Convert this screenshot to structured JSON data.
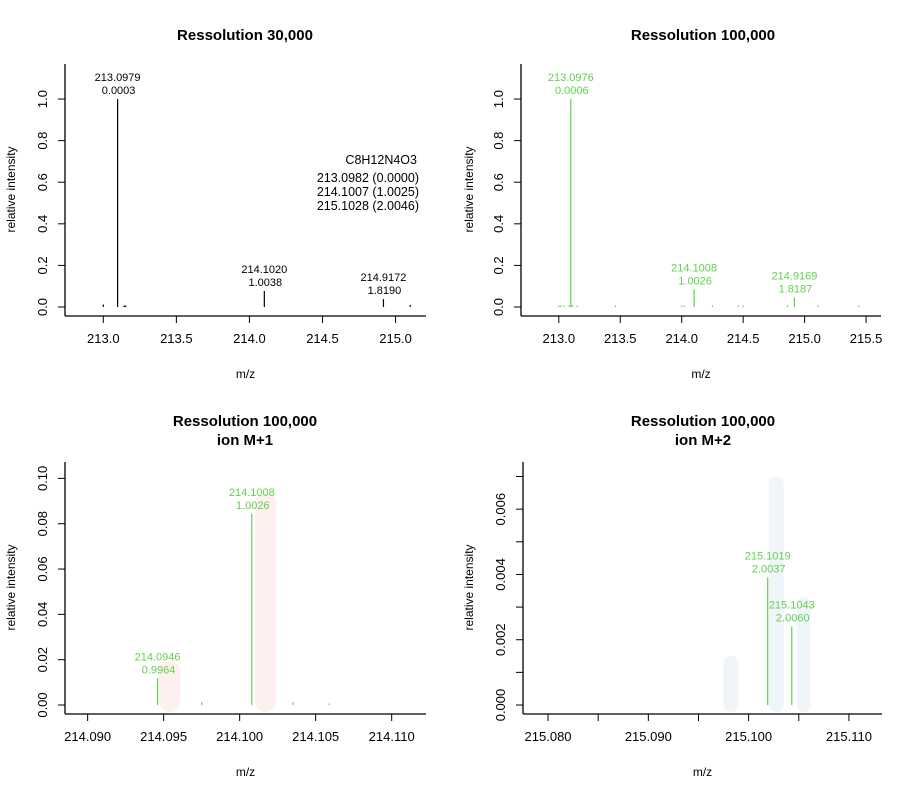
{
  "colors": {
    "black": "#000000",
    "green": "#61D04F",
    "pink_band": "#FFF0F0",
    "blue_band": "#F0F5FA"
  },
  "chart_data": [
    {
      "type": "bar",
      "id": "res30k",
      "title": [
        "Ressolution 30,000"
      ],
      "xlabel": "m/z",
      "ylabel": "relative intensity",
      "xlim": [
        212.82,
        215.14
      ],
      "ylim": [
        0,
        1.13
      ],
      "xticks": [
        213.0,
        213.5,
        214.0,
        214.5,
        215.0
      ],
      "xtick_labels": [
        "213.0",
        "213.5",
        "214.0",
        "214.5",
        "215.0"
      ],
      "yticks": [
        0.0,
        0.2,
        0.4,
        0.6,
        0.8,
        1.0
      ],
      "ytick_labels": [
        "0.0",
        "0.2",
        "0.4",
        "0.6",
        "0.8",
        "1.0"
      ],
      "peak_color": "black",
      "peaks": [
        {
          "mz": 213.0,
          "intensity": 0.012
        },
        {
          "mz": 213.0979,
          "intensity": 1.0,
          "label": [
            "213.0979",
            "0.0003"
          ]
        },
        {
          "mz": 213.143,
          "intensity": 0.004
        },
        {
          "mz": 213.152,
          "intensity": 0.004
        },
        {
          "mz": 214.102,
          "intensity": 0.077,
          "label": [
            "214.1020",
            "1.0038"
          ]
        },
        {
          "mz": 214.9172,
          "intensity": 0.038,
          "label": [
            "214.9172",
            "1.8190"
          ]
        },
        {
          "mz": 215.1,
          "intensity": 0.01
        }
      ],
      "annotation": {
        "lines": [
          "C8H12N4O3",
          "213.0982 (0.0000)",
          "214.1007 (1.0025)",
          "215.1028 (2.0046)"
        ]
      },
      "bands": []
    },
    {
      "type": "bar",
      "id": "res100k",
      "title": [
        "Ressolution 100,000"
      ],
      "xlabel": "m/z",
      "ylabel": "relative intensity",
      "xlim": [
        212.79,
        215.54
      ],
      "ylim": [
        0,
        1.13
      ],
      "xticks": [
        213.0,
        213.5,
        214.0,
        214.5,
        215.0,
        215.5
      ],
      "xtick_labels": [
        "213.0",
        "213.5",
        "214.0",
        "214.5",
        "215.0",
        "215.5"
      ],
      "yticks": [
        0.0,
        0.2,
        0.4,
        0.6,
        0.8,
        1.0
      ],
      "ytick_labels": [
        "0.0",
        "0.2",
        "0.4",
        "0.6",
        "0.8",
        "1.0"
      ],
      "peak_color": "green",
      "peaks": [
        {
          "mz": 213.0,
          "intensity": 0.008
        },
        {
          "mz": 213.015,
          "intensity": 0.004
        },
        {
          "mz": 213.04,
          "intensity": 0.004
        },
        {
          "mz": 213.085,
          "intensity": 0.008
        },
        {
          "mz": 213.0976,
          "intensity": 1.0,
          "label": [
            "213.0976",
            "0.0006"
          ]
        },
        {
          "mz": 213.11,
          "intensity": 0.008
        },
        {
          "mz": 213.15,
          "intensity": 0.004
        },
        {
          "mz": 213.46,
          "intensity": 0.004
        },
        {
          "mz": 214.0,
          "intensity": 0.004
        },
        {
          "mz": 214.02,
          "intensity": 0.004
        },
        {
          "mz": 214.1008,
          "intensity": 0.085,
          "label": [
            "214.1008",
            "1.0026"
          ]
        },
        {
          "mz": 214.25,
          "intensity": 0.004
        },
        {
          "mz": 214.46,
          "intensity": 0.004
        },
        {
          "mz": 214.5,
          "intensity": 0.006
        },
        {
          "mz": 214.86,
          "intensity": 0.004
        },
        {
          "mz": 214.9169,
          "intensity": 0.045,
          "label": [
            "214.9169",
            "1.8187"
          ]
        },
        {
          "mz": 215.11,
          "intensity": 0.006
        },
        {
          "mz": 215.44,
          "intensity": 0.004
        }
      ],
      "annotation": null,
      "bands": []
    },
    {
      "type": "bar",
      "id": "res100k-m1",
      "title": [
        "Ressolution 100,000",
        "ion M+1"
      ],
      "xlabel": "m/z",
      "ylabel": "relative intensity",
      "xlim": [
        214.0893,
        214.1116
      ],
      "ylim": [
        0,
        0.1037
      ],
      "xticks": [
        214.09,
        214.095,
        214.1,
        214.105,
        214.11
      ],
      "xtick_labels": [
        "214.090",
        "214.095",
        "214.100",
        "214.105",
        "214.110"
      ],
      "yticks": [
        0.0,
        0.02,
        0.04,
        0.06,
        0.08,
        0.1
      ],
      "ytick_labels": [
        "0.00",
        "0.02",
        "0.04",
        "0.06",
        "0.08",
        "0.10"
      ],
      "peak_color": "green",
      "peaks": [
        {
          "mz": 214.0946,
          "intensity": 0.0118,
          "label": [
            "214.0946",
            "0.9964"
          ]
        },
        {
          "mz": 214.0975,
          "intensity": 0.0012
        },
        {
          "mz": 214.1008,
          "intensity": 0.0843,
          "label": [
            "214.1008",
            "1.0026"
          ]
        },
        {
          "mz": 214.1035,
          "intensity": 0.0012
        },
        {
          "mz": 214.1059,
          "intensity": 0.0005
        }
      ],
      "annotation": null,
      "bands": [
        {
          "mz_from": 214.0947,
          "mz_to": 214.0961,
          "intensity": 0.0195,
          "color": "pink_band"
        },
        {
          "mz_from": 214.101,
          "intensity": 0.0935,
          "mz_to": 214.1024,
          "color": "pink_band"
        }
      ]
    },
    {
      "type": "bar",
      "id": "res100k-m2",
      "title": [
        "Ressolution 100,000",
        "ion M+2"
      ],
      "xlabel": "m/z",
      "ylabel": "relative intensity",
      "xlim": [
        215.0787,
        215.1123
      ],
      "ylim": [
        0,
        0.0072
      ],
      "xticks": [
        215.08,
        215.085,
        215.09,
        215.095,
        215.1,
        215.105,
        215.11
      ],
      "xtick_labels": [
        "215.080",
        "",
        "215.090",
        "",
        "215.100",
        "",
        "215.110"
      ],
      "yticks": [
        0.0,
        0.001,
        0.002,
        0.003,
        0.004,
        0.005,
        0.006,
        0.007
      ],
      "ytick_labels": [
        "0.000",
        "",
        "0.002",
        "",
        "0.004",
        "",
        "0.006",
        ""
      ],
      "peak_color": "green",
      "peaks": [
        {
          "mz": 215.1019,
          "intensity": 0.0039,
          "label": [
            "215.1019",
            "2.0037"
          ]
        },
        {
          "mz": 215.1043,
          "intensity": 0.0024,
          "label": [
            "215.1043",
            "2.0060"
          ]
        }
      ],
      "annotation": null,
      "bands": [
        {
          "mz_from": 215.0975,
          "mz_to": 215.099,
          "intensity": 0.0015,
          "color": "blue_band"
        },
        {
          "mz_from": 215.102,
          "mz_to": 215.1035,
          "intensity": 0.007,
          "color": "blue_band"
        },
        {
          "mz_from": 215.1048,
          "mz_to": 215.1062,
          "intensity": 0.0033,
          "color": "blue_band"
        }
      ]
    }
  ]
}
